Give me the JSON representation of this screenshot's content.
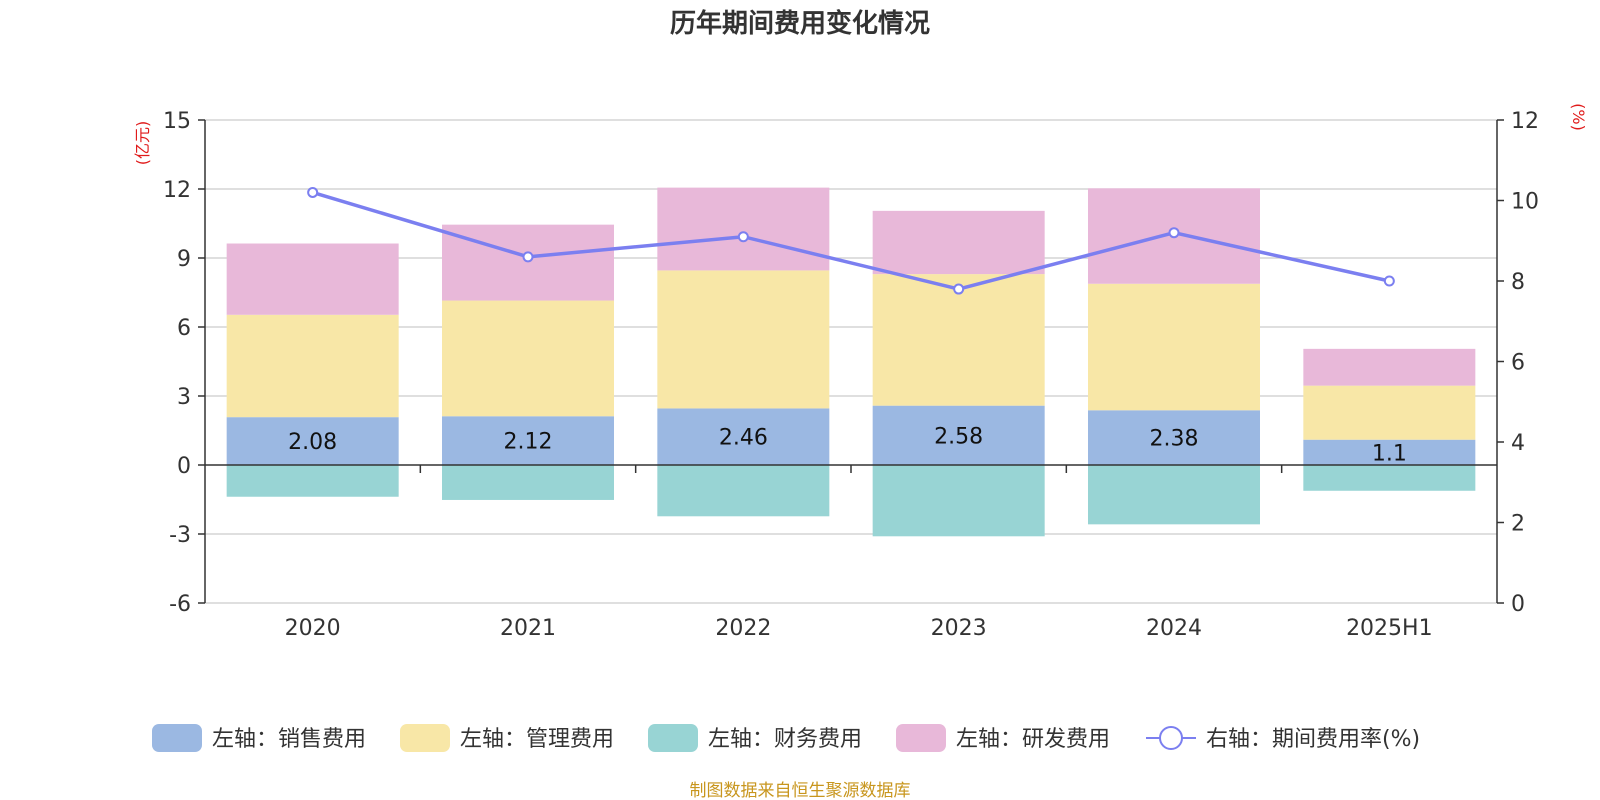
{
  "chart_data": {
    "type": "bar",
    "title": "历年期间费用变化情况",
    "categories": [
      "2020",
      "2021",
      "2022",
      "2023",
      "2024",
      "2025H1"
    ],
    "left_axis": {
      "unit": "(亿元)",
      "ylim": [
        -6,
        15
      ],
      "ticks": [
        -6,
        -3,
        0,
        3,
        6,
        9,
        12,
        15
      ]
    },
    "right_axis": {
      "unit": "(%)",
      "ylim": [
        0,
        12
      ],
      "ticks": [
        0,
        2,
        4,
        6,
        8,
        10,
        12
      ]
    },
    "grid": true,
    "legend_position": "bottom",
    "bar_series": [
      {
        "name": "左轴：销售费用",
        "color": "#9bb8e2",
        "values": [
          2.08,
          2.12,
          2.46,
          2.58,
          2.38,
          1.1
        ],
        "labels": [
          "2.08",
          "2.12",
          "2.46",
          "2.58",
          "2.38",
          "1.1"
        ]
      },
      {
        "name": "左轴：管理费用",
        "color": "#f8e7a7",
        "values": [
          4.45,
          5.03,
          6.0,
          5.72,
          5.5,
          2.35
        ]
      },
      {
        "name": "左轴：财务费用",
        "color": "#98d4d4",
        "values": [
          -1.38,
          -1.52,
          -2.23,
          -3.1,
          -2.58,
          -1.12
        ]
      },
      {
        "name": "左轴：研发费用",
        "color": "#e8b8d9",
        "values": [
          3.1,
          3.3,
          3.6,
          2.75,
          4.15,
          1.6
        ]
      }
    ],
    "line_series": {
      "name": "右轴：期间费用率(%)",
      "color": "#7b7ff0",
      "values": [
        10.2,
        8.6,
        9.1,
        7.8,
        9.2,
        8.0
      ]
    }
  },
  "source_note": "制图数据来自恒生聚源数据库"
}
